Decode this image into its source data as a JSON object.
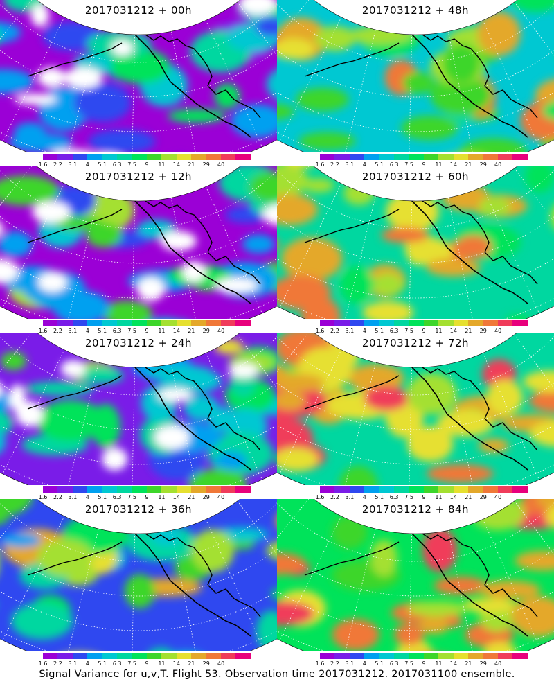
{
  "panels": [
    {
      "title": "2017031212 + 00h"
    },
    {
      "title": "2017031212 + 48h"
    },
    {
      "title": "2017031212 + 12h"
    },
    {
      "title": "2017031212 + 60h"
    },
    {
      "title": "2017031212 + 24h"
    },
    {
      "title": "2017031212 + 72h"
    },
    {
      "title": "2017031212 + 36h"
    },
    {
      "title": "2017031212 + 84h"
    }
  ],
  "colorbar": {
    "labels": [
      "1.6",
      "2.2",
      "3.1",
      "4",
      "5.1",
      "6.3",
      "7.5",
      "9",
      "11",
      "14",
      "21",
      "29",
      "40"
    ],
    "colors": [
      "#9b00d6",
      "#7a1ce8",
      "#2f48f0",
      "#00a0f0",
      "#00c8d2",
      "#00d7a0",
      "#00e35a",
      "#3dd62a",
      "#a4e030",
      "#e6e030",
      "#e4a82a",
      "#f07838",
      "#f03c5a",
      "#e8007c"
    ]
  },
  "caption": "Signal Variance for u,v,T. Flight 53. Observation time 2017031212. 2017031100 ensemble."
}
